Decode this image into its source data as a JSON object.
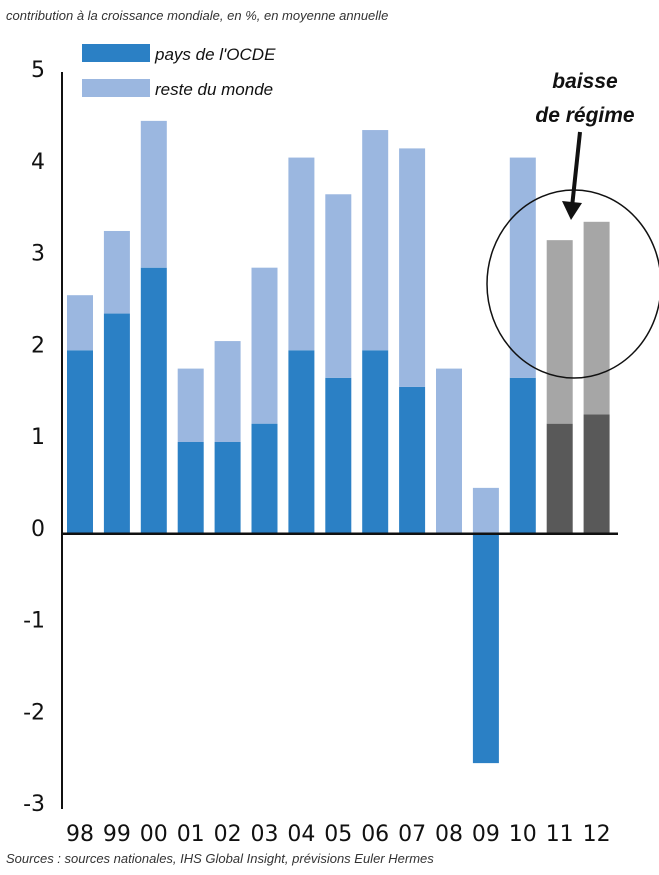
{
  "subtitle": "contribution à la croissance mondiale, en %, en moyenne annuelle",
  "source": "Sources : sources nationales, IHS Global Insight, prévisions Euler Hermes",
  "annotation": {
    "line1": "baisse",
    "line2": "de régime"
  },
  "colors": {
    "oecd": "#2b80c5",
    "rest": "#9bb7e0",
    "oecd_forecast": "#595959",
    "rest_forecast": "#a6a6a6",
    "axis": "#111111"
  },
  "chart_data": {
    "type": "bar",
    "stacked": true,
    "categories": [
      "98",
      "99",
      "00",
      "01",
      "02",
      "03",
      "04",
      "05",
      "06",
      "07",
      "08",
      "09",
      "10",
      "11",
      "12"
    ],
    "forecast_categories": [
      "11",
      "12"
    ],
    "series": [
      {
        "name": "pays de l'OCDE",
        "values": [
          2.0,
          2.4,
          2.9,
          1.0,
          1.0,
          1.2,
          2.0,
          1.7,
          2.0,
          1.6,
          0.0,
          -2.5,
          1.7,
          1.2,
          1.3
        ]
      },
      {
        "name": "reste du monde",
        "values": [
          0.6,
          0.9,
          1.6,
          0.8,
          1.1,
          1.7,
          2.1,
          2.0,
          2.4,
          2.6,
          1.8,
          0.5,
          2.4,
          2.0,
          2.1
        ]
      }
    ],
    "ylim": [
      -3,
      5
    ],
    "yticks": [
      5,
      4,
      3,
      2,
      1,
      0,
      -1,
      -2,
      -3
    ],
    "legend": "top-left",
    "grid": false
  }
}
